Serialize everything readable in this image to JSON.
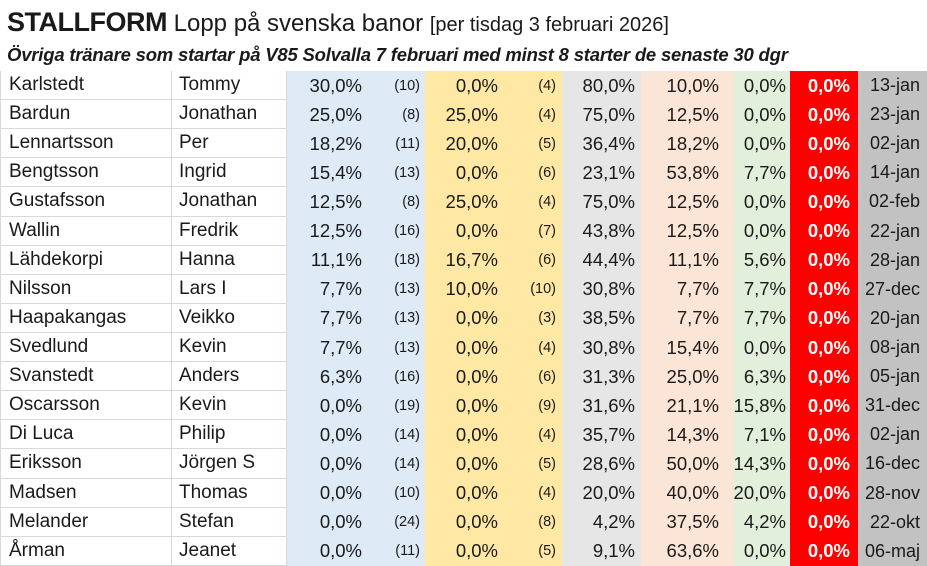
{
  "header": {
    "brand": "STALLFORM",
    "subject": " Lopp på svenska banor ",
    "date_note": "[per tisdag 3 februari 2026]",
    "caption": "Övriga tränare som startar på V85 Solvalla 7 februari med minst 8 starter de senaste 30 dgr"
  },
  "colors": {
    "blue": "#DEEBF7",
    "yellow": "#FFE8A3",
    "gray3": "#E7E6E6",
    "pink": "#FBE5D6",
    "green": "#E2EFDA",
    "red": "#FF0000",
    "dategray": "#C2C2C2",
    "grid": "#D9D9D9",
    "text": "#1A1A1A"
  },
  "table": {
    "columns": [
      {
        "key": "last",
        "name": "cell-lastname",
        "class": "c-last"
      },
      {
        "key": "first",
        "name": "cell-firstname",
        "class": "c-first"
      },
      {
        "key": "pct1",
        "name": "cell-win-pct",
        "class": "c-p1 num"
      },
      {
        "key": "n1",
        "name": "cell-starts-count",
        "class": "c-n1 num"
      },
      {
        "key": "pct2",
        "name": "cell-win-pct-2",
        "class": "c-p2 num"
      },
      {
        "key": "n2",
        "name": "cell-starts-count-2",
        "class": "c-n2 num"
      },
      {
        "key": "pct3",
        "name": "cell-pct-gray",
        "class": "c-p3 num"
      },
      {
        "key": "pct4",
        "name": "cell-pct-pink",
        "class": "c-p4 num"
      },
      {
        "key": "pct5",
        "name": "cell-pct-green",
        "class": "c-p5 num"
      },
      {
        "key": "pct6",
        "name": "cell-pct-red",
        "class": "c-p6 num"
      },
      {
        "key": "date",
        "name": "cell-last-win-date",
        "class": "c-date num"
      }
    ],
    "rows": [
      {
        "last": "Karlstedt",
        "first": "Tommy",
        "pct1": "30,0%",
        "n1": "(10)",
        "pct2": "0,0%",
        "n2": "(4)",
        "pct3": "80,0%",
        "pct4": "10,0%",
        "pct5": "0,0%",
        "pct6": "0,0%",
        "date": "13-jan"
      },
      {
        "last": "Bardun",
        "first": "Jonathan",
        "pct1": "25,0%",
        "n1": "(8)",
        "pct2": "25,0%",
        "n2": "(4)",
        "pct3": "75,0%",
        "pct4": "12,5%",
        "pct5": "0,0%",
        "pct6": "0,0%",
        "date": "23-jan"
      },
      {
        "last": "Lennartsson",
        "first": "Per",
        "pct1": "18,2%",
        "n1": "(11)",
        "pct2": "20,0%",
        "n2": "(5)",
        "pct3": "36,4%",
        "pct4": "18,2%",
        "pct5": "0,0%",
        "pct6": "0,0%",
        "date": "02-jan"
      },
      {
        "last": "Bengtsson",
        "first": "Ingrid",
        "pct1": "15,4%",
        "n1": "(13)",
        "pct2": "0,0%",
        "n2": "(6)",
        "pct3": "23,1%",
        "pct4": "53,8%",
        "pct5": "7,7%",
        "pct6": "0,0%",
        "date": "14-jan"
      },
      {
        "last": "Gustafsson",
        "first": "Jonathan",
        "pct1": "12,5%",
        "n1": "(8)",
        "pct2": "25,0%",
        "n2": "(4)",
        "pct3": "75,0%",
        "pct4": "12,5%",
        "pct5": "0,0%",
        "pct6": "0,0%",
        "date": "02-feb"
      },
      {
        "last": "Wallin",
        "first": "Fredrik",
        "pct1": "12,5%",
        "n1": "(16)",
        "pct2": "0,0%",
        "n2": "(7)",
        "pct3": "43,8%",
        "pct4": "12,5%",
        "pct5": "0,0%",
        "pct6": "0,0%",
        "date": "22-jan"
      },
      {
        "last": "Lähdekorpi",
        "first": "Hanna",
        "pct1": "11,1%",
        "n1": "(18)",
        "pct2": "16,7%",
        "n2": "(6)",
        "pct3": "44,4%",
        "pct4": "11,1%",
        "pct5": "5,6%",
        "pct6": "0,0%",
        "date": "28-jan"
      },
      {
        "last": "Nilsson",
        "first": "Lars I",
        "pct1": "7,7%",
        "n1": "(13)",
        "pct2": "10,0%",
        "n2": "(10)",
        "pct3": "30,8%",
        "pct4": "7,7%",
        "pct5": "7,7%",
        "pct6": "0,0%",
        "date": "27-dec"
      },
      {
        "last": "Haapakangas",
        "first": "Veikko",
        "pct1": "7,7%",
        "n1": "(13)",
        "pct2": "0,0%",
        "n2": "(3)",
        "pct3": "38,5%",
        "pct4": "7,7%",
        "pct5": "7,7%",
        "pct6": "0,0%",
        "date": "20-jan"
      },
      {
        "last": "Svedlund",
        "first": "Kevin",
        "pct1": "7,7%",
        "n1": "(13)",
        "pct2": "0,0%",
        "n2": "(4)",
        "pct3": "30,8%",
        "pct4": "15,4%",
        "pct5": "0,0%",
        "pct6": "0,0%",
        "date": "08-jan"
      },
      {
        "last": "Svanstedt",
        "first": "Anders",
        "pct1": "6,3%",
        "n1": "(16)",
        "pct2": "0,0%",
        "n2": "(6)",
        "pct3": "31,3%",
        "pct4": "25,0%",
        "pct5": "6,3%",
        "pct6": "0,0%",
        "date": "05-jan"
      },
      {
        "last": "Oscarsson",
        "first": "Kevin",
        "pct1": "0,0%",
        "n1": "(19)",
        "pct2": "0,0%",
        "n2": "(9)",
        "pct3": "31,6%",
        "pct4": "21,1%",
        "pct5": "15,8%",
        "pct6": "0,0%",
        "date": "31-dec"
      },
      {
        "last": "Di Luca",
        "first": "Philip",
        "pct1": "0,0%",
        "n1": "(14)",
        "pct2": "0,0%",
        "n2": "(4)",
        "pct3": "35,7%",
        "pct4": "14,3%",
        "pct5": "7,1%",
        "pct6": "0,0%",
        "date": "02-jan"
      },
      {
        "last": "Eriksson",
        "first": "Jörgen S",
        "pct1": "0,0%",
        "n1": "(14)",
        "pct2": "0,0%",
        "n2": "(5)",
        "pct3": "28,6%",
        "pct4": "50,0%",
        "pct5": "14,3%",
        "pct6": "0,0%",
        "date": "16-dec"
      },
      {
        "last": "Madsen",
        "first": "Thomas",
        "pct1": "0,0%",
        "n1": "(10)",
        "pct2": "0,0%",
        "n2": "(4)",
        "pct3": "20,0%",
        "pct4": "40,0%",
        "pct5": "20,0%",
        "pct6": "0,0%",
        "date": "28-nov"
      },
      {
        "last": "Melander",
        "first": "Stefan",
        "pct1": "0,0%",
        "n1": "(24)",
        "pct2": "0,0%",
        "n2": "(8)",
        "pct3": "4,2%",
        "pct4": "37,5%",
        "pct5": "4,2%",
        "pct6": "0,0%",
        "date": "22-okt"
      },
      {
        "last": "Årman",
        "first": "Jeanet",
        "pct1": "0,0%",
        "n1": "(11)",
        "pct2": "0,0%",
        "n2": "(5)",
        "pct3": "9,1%",
        "pct4": "63,6%",
        "pct5": "0,0%",
        "pct6": "0,0%",
        "date": "06-maj"
      }
    ]
  }
}
